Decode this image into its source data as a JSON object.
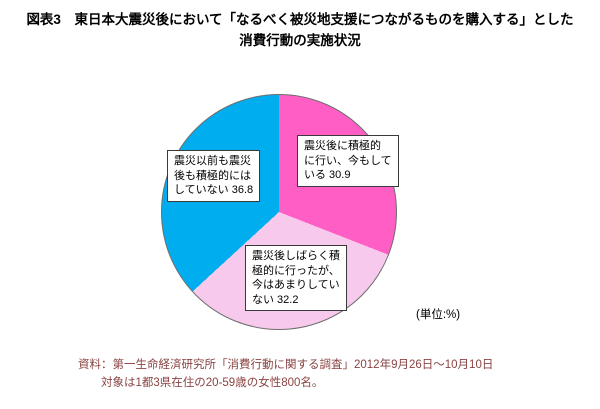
{
  "title": {
    "line1": "図表3　東日本大震災後において「なるべく被災地支援につながるものを購入する」とした",
    "line2": "消費行動の実施状況"
  },
  "unit_label": "(単位:%)",
  "chart_data": {
    "type": "pie",
    "title": "東日本大震災後において「なるべく被災地支援につながるものを購入する」とした消費行動の実施状況",
    "unit": "%",
    "start_angle_deg": 0,
    "direction": "clockwise",
    "legend_position": "labels-on-chart",
    "slices": [
      {
        "label": "震災後に積極的に行い、今もしている",
        "value": 30.9,
        "color": "#ff5ec4",
        "box_text": "震災後に積極的\nに行い、今もして\nいる 30.9"
      },
      {
        "label": "震災後しばらく積極的に行ったが、今はあまりしていない",
        "value": 32.2,
        "color": "#f7c9ec",
        "box_text": "震災後しばらく積\n極的に行ったが、\n今はあまりしてい\nない 32.2"
      },
      {
        "label": "震災以前も震災後も積極的にはしていない",
        "value": 36.8,
        "color": "#00aeef",
        "box_text": "震災以前も震災\n後も積極的には\nしていない 36.8"
      }
    ]
  },
  "source": {
    "line1": "資料：第一生命経済研究所「消費行動に関する調査」2012年9月26日～10月10日",
    "line2": "対象は1都3県在住の20-59歳の女性800名。"
  }
}
